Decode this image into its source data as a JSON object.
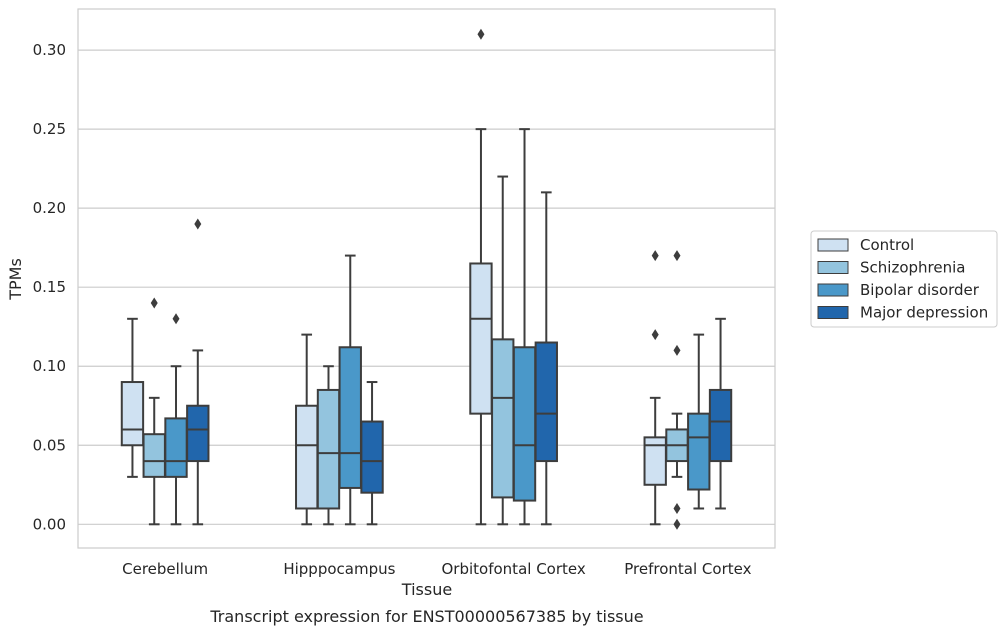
{
  "chart_data": {
    "type": "box",
    "title": "",
    "caption": "Transcript expression for ENST00000567385 by tissue",
    "xlabel": "Tissue",
    "ylabel": "TPMs",
    "ylim": [
      -0.015,
      0.326
    ],
    "yticks": [
      "0.00",
      "0.05",
      "0.10",
      "0.15",
      "0.20",
      "0.25",
      "0.30"
    ],
    "ytick_values": [
      0,
      0.05,
      0.1,
      0.15,
      0.2,
      0.25,
      0.3
    ],
    "grid": true,
    "legend_position": "right",
    "categories": [
      "Cerebellum",
      "Hipppocampus",
      "Orbitofontal Cortex",
      "Prefrontal Cortex"
    ],
    "series": [
      {
        "name": "Control",
        "color": "#cfe1f2",
        "boxes": [
          {
            "whislo": 0.03,
            "q1": 0.05,
            "med": 0.06,
            "q3": 0.09,
            "whishi": 0.13,
            "fliers": []
          },
          {
            "whislo": 0.0,
            "q1": 0.01,
            "med": 0.05,
            "q3": 0.075,
            "whishi": 0.12,
            "fliers": []
          },
          {
            "whislo": 0.0,
            "q1": 0.07,
            "med": 0.13,
            "q3": 0.165,
            "whishi": 0.25,
            "fliers": [
              0.31
            ]
          },
          {
            "whislo": 0.0,
            "q1": 0.025,
            "med": 0.05,
            "q3": 0.055,
            "whishi": 0.08,
            "fliers": [
              0.12,
              0.17
            ]
          }
        ]
      },
      {
        "name": "Schizophrenia",
        "color": "#93c4de",
        "boxes": [
          {
            "whislo": 0.0,
            "q1": 0.03,
            "med": 0.04,
            "q3": 0.057,
            "whishi": 0.08,
            "fliers": [
              0.14
            ]
          },
          {
            "whislo": 0.0,
            "q1": 0.01,
            "med": 0.045,
            "q3": 0.085,
            "whishi": 0.1,
            "fliers": []
          },
          {
            "whislo": 0.0,
            "q1": 0.017,
            "med": 0.08,
            "q3": 0.117,
            "whishi": 0.22,
            "fliers": []
          },
          {
            "whislo": 0.03,
            "q1": 0.04,
            "med": 0.05,
            "q3": 0.06,
            "whishi": 0.07,
            "fliers": [
              0.11,
              0.17,
              0.01,
              0.0
            ]
          }
        ]
      },
      {
        "name": "Bipolar disorder",
        "color": "#4a98c9",
        "boxes": [
          {
            "whislo": 0.0,
            "q1": 0.03,
            "med": 0.04,
            "q3": 0.067,
            "whishi": 0.1,
            "fliers": [
              0.13
            ]
          },
          {
            "whislo": 0.0,
            "q1": 0.023,
            "med": 0.045,
            "q3": 0.112,
            "whishi": 0.17,
            "fliers": []
          },
          {
            "whislo": 0.0,
            "q1": 0.015,
            "med": 0.05,
            "q3": 0.112,
            "whishi": 0.25,
            "fliers": []
          },
          {
            "whislo": 0.01,
            "q1": 0.022,
            "med": 0.055,
            "q3": 0.07,
            "whishi": 0.12,
            "fliers": []
          }
        ]
      },
      {
        "name": "Major depression",
        "color": "#2166ac",
        "boxes": [
          {
            "whislo": 0.0,
            "q1": 0.04,
            "med": 0.06,
            "q3": 0.075,
            "whishi": 0.11,
            "fliers": [
              0.19
            ]
          },
          {
            "whislo": 0.0,
            "q1": 0.02,
            "med": 0.04,
            "q3": 0.065,
            "whishi": 0.09,
            "fliers": []
          },
          {
            "whislo": 0.0,
            "q1": 0.04,
            "med": 0.07,
            "q3": 0.115,
            "whishi": 0.21,
            "fliers": []
          },
          {
            "whislo": 0.01,
            "q1": 0.04,
            "med": 0.065,
            "q3": 0.085,
            "whishi": 0.13,
            "fliers": []
          }
        ]
      }
    ]
  }
}
